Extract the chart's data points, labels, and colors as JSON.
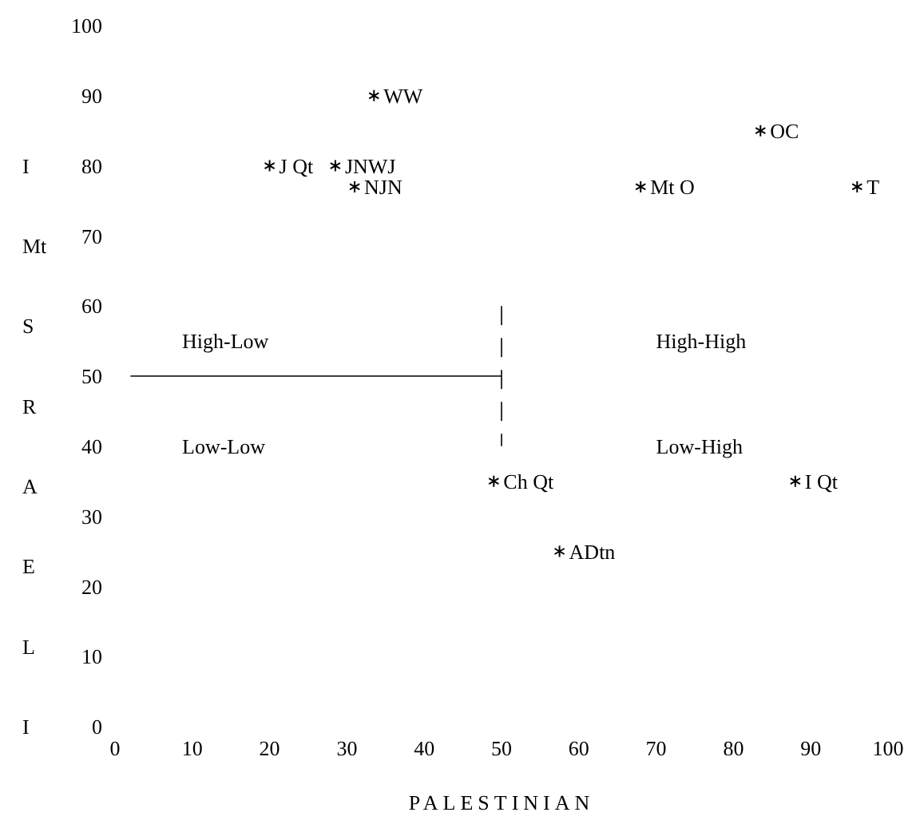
{
  "chart_data": {
    "type": "scatter",
    "xlabel": "PALESTINIAN",
    "ylabel": "I Mt S R A E L I",
    "x": [
      33.5,
      83.5,
      20,
      28.5,
      31,
      68,
      96,
      49,
      88,
      57.5
    ],
    "values": [
      90,
      85,
      80,
      80,
      77,
      77,
      77,
      35,
      35,
      25
    ],
    "color": "#000000",
    "marker": "cross",
    "xlim": [
      0,
      100
    ],
    "ylim": [
      0,
      100
    ],
    "xticks": [
      0,
      10,
      20,
      30,
      40,
      50,
      60,
      70,
      80,
      90,
      100
    ],
    "yticks": [
      0,
      10,
      20,
      30,
      40,
      50,
      60,
      70,
      80,
      90,
      100
    ],
    "grid": false,
    "ref_lines": [
      {
        "axis": "x",
        "value": 50,
        "line_style": "dashed"
      },
      {
        "axis": "y",
        "value": 50
      }
    ],
    "annotations": [
      {
        "text": "WW",
        "x": 33.5,
        "y": 90
      },
      {
        "text": "OC",
        "x": 83.5,
        "y": 85
      },
      {
        "text": "J Qt",
        "x": 20,
        "y": 80
      },
      {
        "text": "JNWJ",
        "x": 28.5,
        "y": 80
      },
      {
        "text": "NJN",
        "x": 31,
        "y": 77
      },
      {
        "text": "Mt O",
        "x": 68,
        "y": 77
      },
      {
        "text": "T",
        "x": 96,
        "y": 77
      },
      {
        "text": "Ch Qt",
        "x": 49,
        "y": 35
      },
      {
        "text": "I Qt",
        "x": 88,
        "y": 35
      },
      {
        "text": "ADtn",
        "x": 57.5,
        "y": 25
      },
      "High-Low",
      "High-High",
      "Low-Low",
      "Low-High"
    ]
  }
}
